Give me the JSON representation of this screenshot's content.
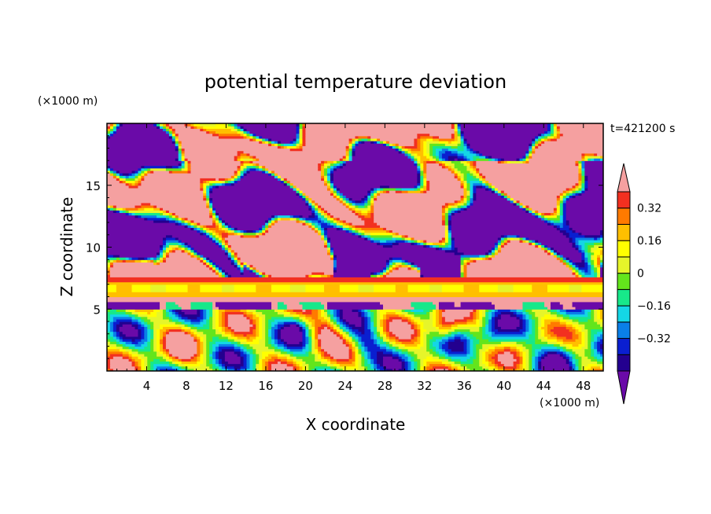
{
  "chart_data": {
    "type": "heatmap",
    "title": "potential temperature deviation",
    "time_label": "t=421200 s",
    "xlabel": "X coordinate",
    "ylabel": "Z coordinate",
    "x_unit": "(×1000 m)",
    "y_unit": "(×1000 m)",
    "xlim": [
      0,
      50
    ],
    "ylim": [
      0,
      20
    ],
    "x_ticks": [
      4,
      8,
      12,
      16,
      20,
      24,
      28,
      32,
      36,
      40,
      44,
      48
    ],
    "y_ticks": [
      5,
      10,
      15
    ],
    "colorbar": {
      "levels": [
        -0.48,
        -0.4,
        -0.32,
        -0.24,
        -0.16,
        -0.08,
        0,
        0.08,
        0.16,
        0.24,
        0.32,
        0.4
      ],
      "colors": [
        "#6a0aa8",
        "#23008f",
        "#0a1fd0",
        "#0a7fe8",
        "#14d6e6",
        "#17e88a",
        "#63e51c",
        "#e6f52a",
        "#ffff00",
        "#ffbf00",
        "#ff7a00",
        "#f23020",
        "#f5a0a0"
      ],
      "tick_labels": [
        "0.32",
        "0.16",
        "0",
        "−0.16",
        "−0.32"
      ],
      "tick_values": [
        0.32,
        0.16,
        0,
        -0.16,
        -0.32
      ]
    },
    "layers_description_values": {
      "upper_layer_range_km": [
        6,
        20
      ],
      "stable_band_km": [
        5.5,
        7.7
      ],
      "lower_turbulent_layer_km": [
        0,
        5
      ]
    }
  }
}
